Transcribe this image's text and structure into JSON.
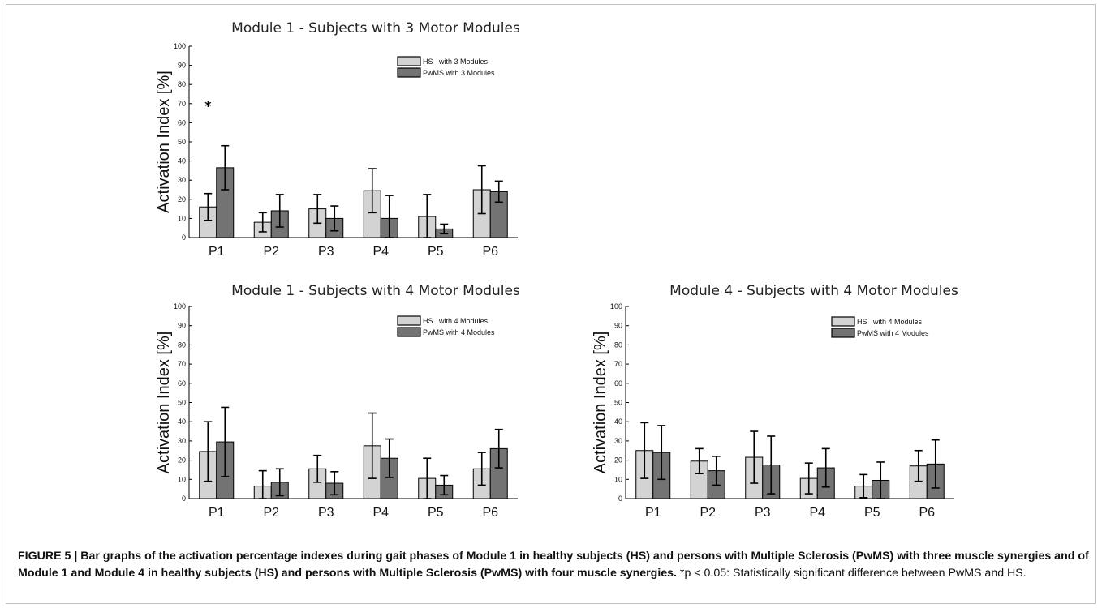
{
  "figure": {
    "caption_bold": "FIGURE 5 | Bar graphs of the activation percentage indexes during gait phases of Module 1 in healthy subjects (HS) and persons with Multiple Sclerosis (PwMS) with three muscle synergies and of Module 1 and Module 4 in healthy subjects (HS) and persons with Multiple Sclerosis (PwMS) with four muscle synergies.",
    "caption_rest": " *p < 0.05: Statistically significant difference between PwMS and HS."
  },
  "colors": {
    "hs": "#d3d3d3",
    "pwms": "#737373",
    "stroke": "#000000"
  },
  "chart_data": [
    {
      "type": "bar",
      "title": "Module 1 - Subjects with 3 Motor Modules",
      "ylabel": "Activation Index [%]",
      "xlabel": "",
      "ylim": [
        0,
        100
      ],
      "yticks": [
        0,
        10,
        20,
        30,
        40,
        50,
        60,
        70,
        80,
        90,
        100
      ],
      "categories": [
        "P1",
        "P2",
        "P3",
        "P4",
        "P5",
        "P6"
      ],
      "legend_position": "top-right",
      "series": [
        {
          "name": "HS   with 3 Modules",
          "values": [
            16,
            8,
            15,
            24.5,
            11,
            25
          ],
          "error": [
            7,
            5,
            7.5,
            11.5,
            11.5,
            12.5
          ]
        },
        {
          "name": "PwMS with 3 Modules",
          "values": [
            36.5,
            14,
            10,
            10,
            4.5,
            24
          ],
          "error": [
            11.5,
            8.5,
            6.5,
            12,
            2.5,
            5.5
          ]
        }
      ],
      "annotations": [
        {
          "text": "*",
          "category": "P1",
          "y": 70
        }
      ]
    },
    {
      "type": "bar",
      "title": "Module 1 - Subjects with 4 Motor Modules",
      "ylabel": "Activation Index [%]",
      "xlabel": "",
      "ylim": [
        0,
        100
      ],
      "yticks": [
        0,
        10,
        20,
        30,
        40,
        50,
        60,
        70,
        80,
        90,
        100
      ],
      "categories": [
        "P1",
        "P2",
        "P3",
        "P4",
        "P5",
        "P6"
      ],
      "legend_position": "top-right",
      "series": [
        {
          "name": "HS   with 4 Modules",
          "values": [
            24.5,
            6.5,
            15.5,
            27.5,
            10.5,
            15.5
          ],
          "error": [
            15.5,
            8,
            7,
            17,
            10.5,
            8.5
          ]
        },
        {
          "name": "PwMS with 4 Modules",
          "values": [
            29.5,
            8.5,
            8,
            21,
            7,
            26
          ],
          "error": [
            18,
            7,
            6,
            10,
            5,
            10
          ]
        }
      ],
      "annotations": []
    },
    {
      "type": "bar",
      "title": "Module 4 - Subjects with 4 Motor Modules",
      "ylabel": "Activation Index [%]",
      "xlabel": "",
      "ylim": [
        0,
        100
      ],
      "yticks": [
        0,
        10,
        20,
        30,
        40,
        50,
        60,
        70,
        80,
        90,
        100
      ],
      "categories": [
        "P1",
        "P2",
        "P3",
        "P4",
        "P5",
        "P6"
      ],
      "legend_position": "top-right",
      "series": [
        {
          "name": "HS   with 4 Modules",
          "values": [
            25,
            19.5,
            21.5,
            10.5,
            6.5,
            17
          ],
          "error": [
            14.5,
            6.5,
            13.5,
            8,
            6,
            8
          ]
        },
        {
          "name": "PwMS with 4 Modules",
          "values": [
            24,
            14.5,
            17.5,
            16,
            9.5,
            18
          ],
          "error": [
            14,
            7.5,
            15,
            10,
            9.5,
            12.5
          ]
        }
      ],
      "annotations": []
    }
  ]
}
